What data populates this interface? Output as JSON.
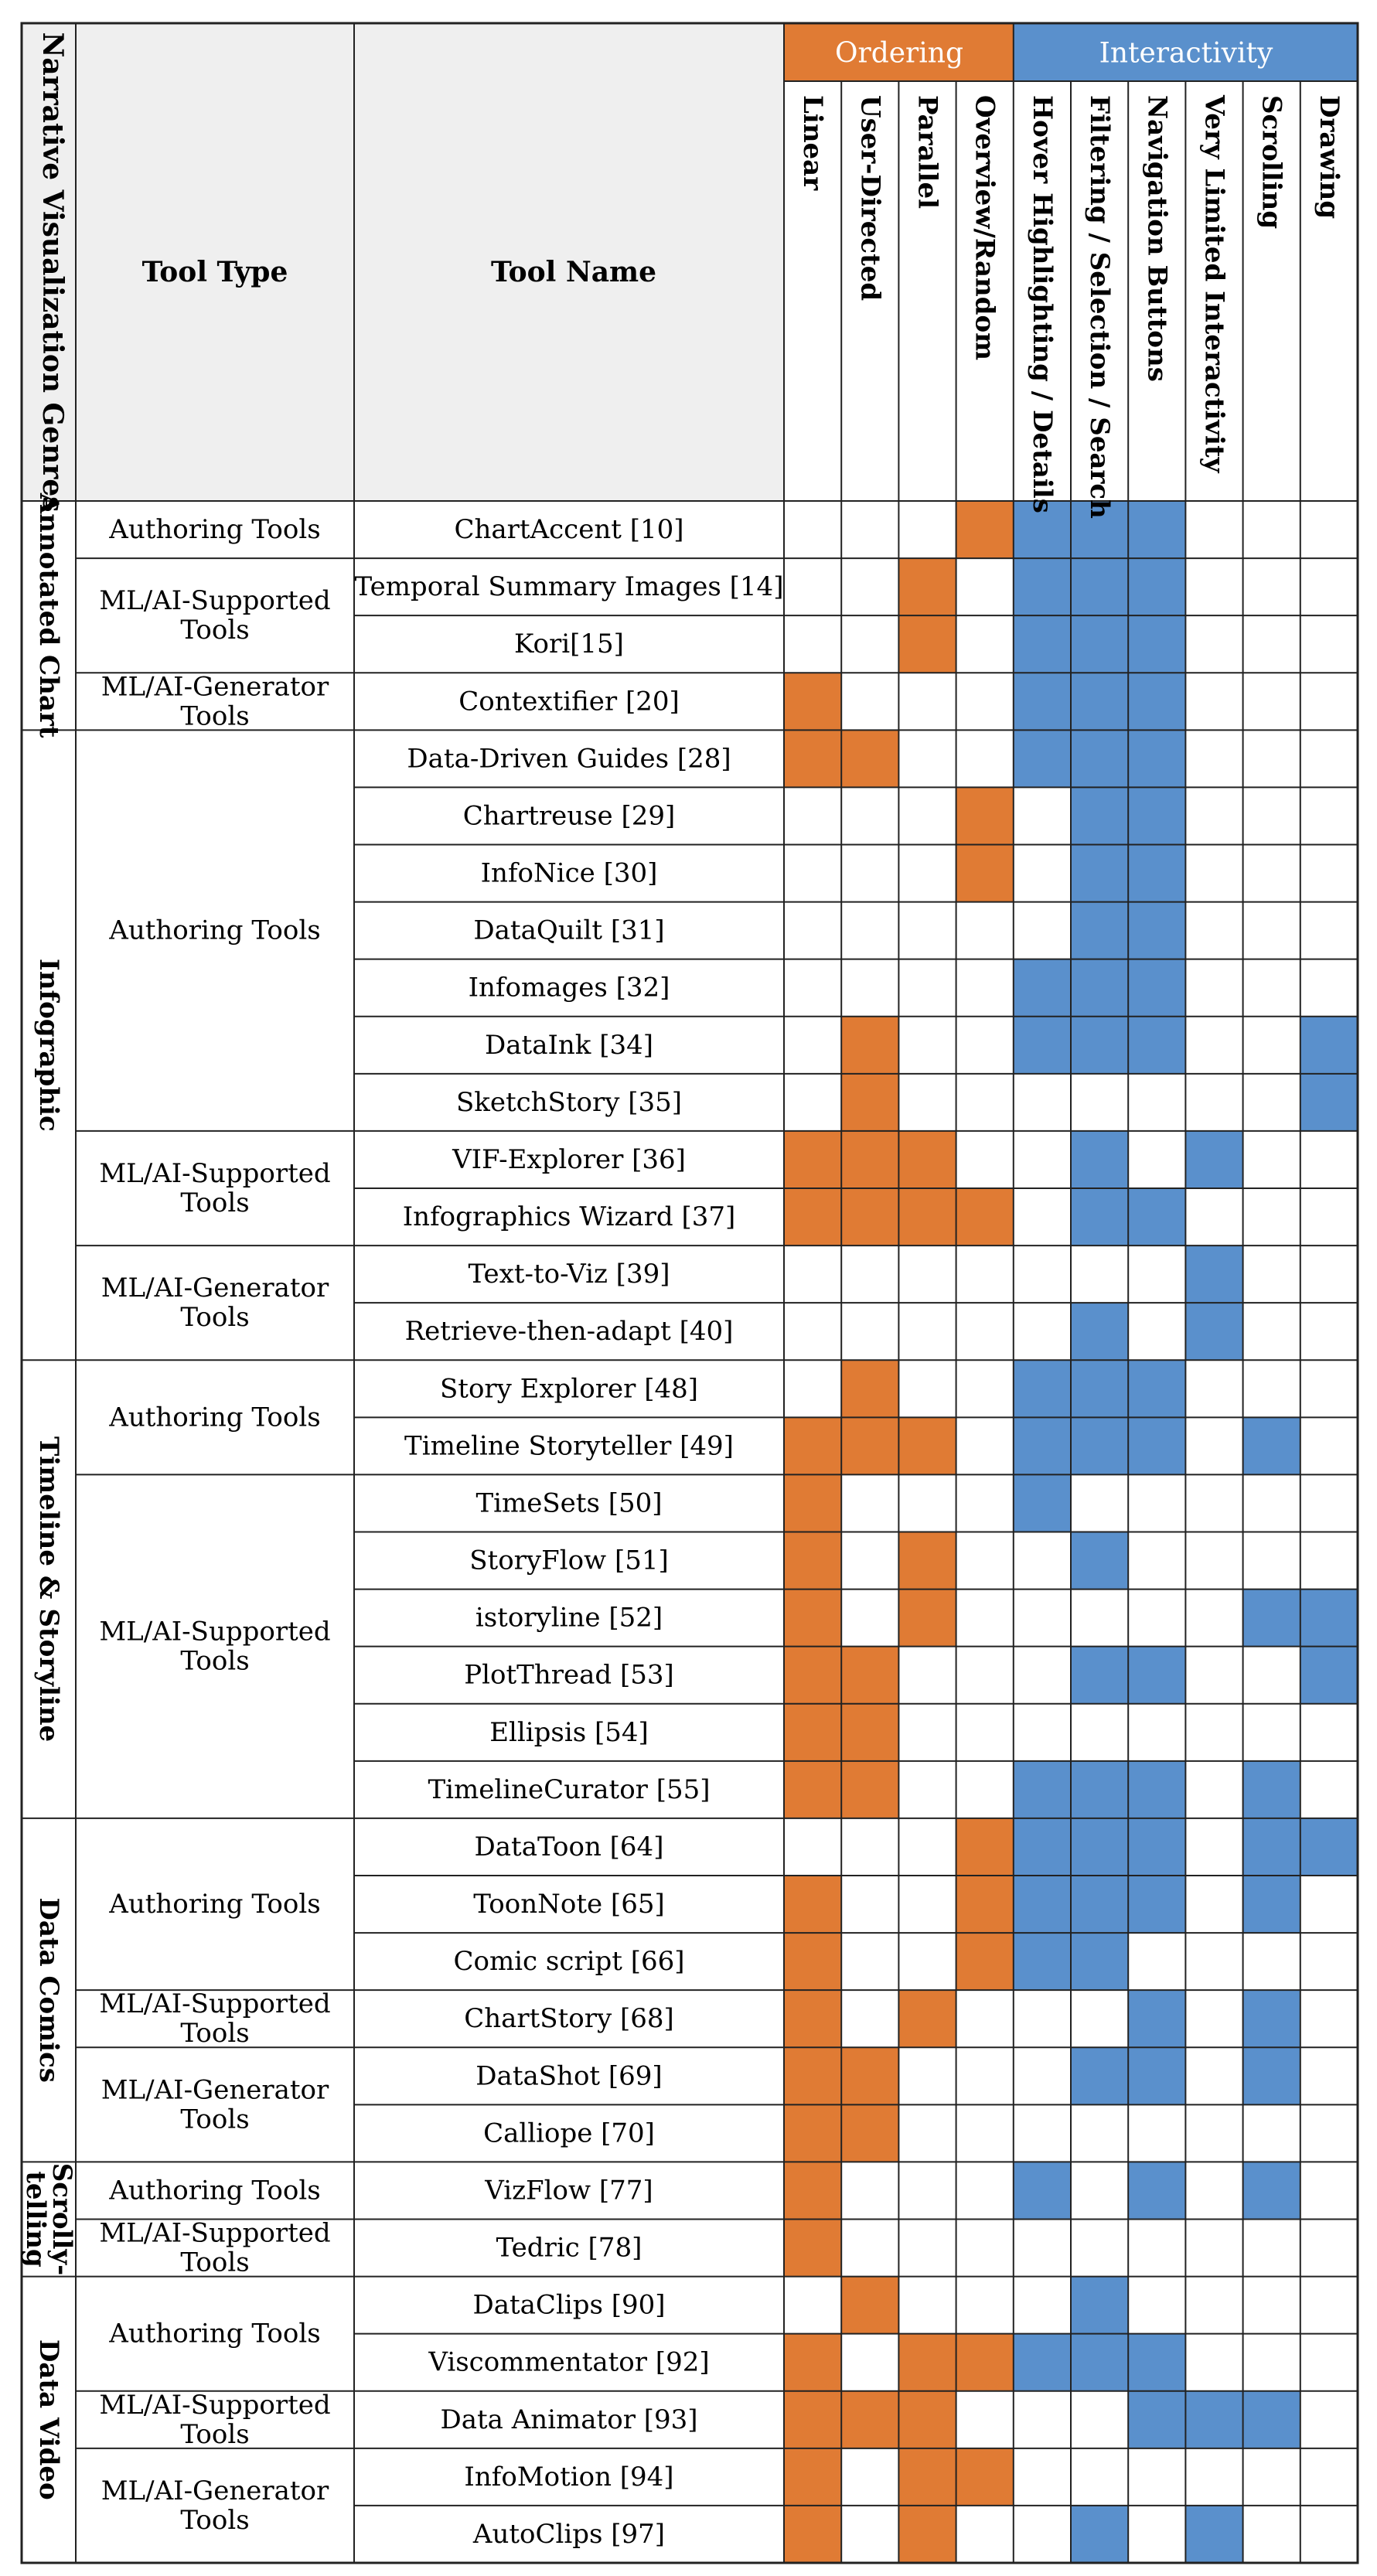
{
  "headers": {
    "genre": "Narrative Visualization Genres",
    "tool_type": "Tool Type",
    "tool_name": "Tool Name",
    "ordering": "Ordering",
    "interactivity": "Interactivity",
    "columns": [
      "Linear",
      "User-Directed",
      "Parallel",
      "Overview/Random",
      "Hover Highlighting / Details",
      "Filtering / Selection / Search",
      "Navigation Buttons",
      "Very Limited Interactivity",
      "Scrolling",
      "Drawing"
    ]
  },
  "colors": {
    "ordering": "#E07B34",
    "interactivity": "#5A90CC",
    "header_bg": "#EFEFEF",
    "grid": "#222222"
  },
  "genres": [
    {
      "label": [
        "Annotated Chart"
      ],
      "start": 0,
      "span": 4
    },
    {
      "label": [
        "Infographic"
      ],
      "start": 4,
      "span": 11
    },
    {
      "label": [
        "Timeline & Storyline"
      ],
      "start": 15,
      "span": 8
    },
    {
      "label": [
        "Data Comics"
      ],
      "start": 23,
      "span": 6
    },
    {
      "label": [
        "Scrolly-",
        "telling"
      ],
      "start": 29,
      "span": 2
    },
    {
      "label": [
        "Data Video"
      ],
      "start": 31,
      "span": 5
    }
  ],
  "tool_types": [
    {
      "label": [
        "Authoring Tools"
      ],
      "start": 0,
      "span": 1
    },
    {
      "label": [
        "ML/AI-Supported",
        "Tools"
      ],
      "start": 1,
      "span": 2
    },
    {
      "label": [
        "ML/AI-Generator",
        "Tools"
      ],
      "start": 3,
      "span": 1
    },
    {
      "label": [
        "Authoring Tools"
      ],
      "start": 4,
      "span": 7
    },
    {
      "label": [
        "ML/AI-Supported",
        "Tools"
      ],
      "start": 11,
      "span": 2
    },
    {
      "label": [
        "ML/AI-Generator",
        "Tools"
      ],
      "start": 13,
      "span": 2
    },
    {
      "label": [
        "Authoring Tools"
      ],
      "start": 15,
      "span": 2
    },
    {
      "label": [
        "ML/AI-Supported",
        "Tools"
      ],
      "start": 17,
      "span": 6
    },
    {
      "label": [
        "Authoring Tools"
      ],
      "start": 23,
      "span": 3
    },
    {
      "label": [
        "ML/AI-Supported",
        "Tools"
      ],
      "start": 26,
      "span": 1
    },
    {
      "label": [
        "ML/AI-Generator",
        "Tools"
      ],
      "start": 27,
      "span": 2
    },
    {
      "label": [
        "Authoring Tools"
      ],
      "start": 29,
      "span": 1
    },
    {
      "label": [
        "ML/AI-Supported",
        "Tools"
      ],
      "start": 30,
      "span": 1
    },
    {
      "label": [
        "Authoring Tools"
      ],
      "start": 31,
      "span": 2
    },
    {
      "label": [
        "ML/AI-Supported",
        "Tools"
      ],
      "start": 33,
      "span": 1
    },
    {
      "label": [
        "ML/AI-Generator",
        "Tools"
      ],
      "start": 34,
      "span": 2
    }
  ],
  "rows": [
    {
      "name": "ChartAccent [10]",
      "cells": [
        0,
        0,
        0,
        1,
        1,
        1,
        1,
        0,
        0,
        0
      ]
    },
    {
      "name": "Temporal Summary Images [14]",
      "cells": [
        0,
        0,
        1,
        0,
        1,
        1,
        1,
        0,
        0,
        0
      ]
    },
    {
      "name": "Kori[15]",
      "cells": [
        0,
        0,
        1,
        0,
        1,
        1,
        1,
        0,
        0,
        0
      ]
    },
    {
      "name": "Contextifier [20]",
      "cells": [
        1,
        0,
        0,
        0,
        1,
        1,
        1,
        0,
        0,
        0
      ]
    },
    {
      "name": "Data-Driven Guides [28]",
      "cells": [
        1,
        1,
        0,
        0,
        1,
        1,
        1,
        0,
        0,
        0
      ]
    },
    {
      "name": "Chartreuse [29]",
      "cells": [
        0,
        0,
        0,
        1,
        0,
        1,
        1,
        0,
        0,
        0
      ]
    },
    {
      "name": "InfoNice [30]",
      "cells": [
        0,
        0,
        0,
        1,
        0,
        1,
        1,
        0,
        0,
        0
      ]
    },
    {
      "name": "DataQuilt [31]",
      "cells": [
        0,
        0,
        0,
        0,
        0,
        1,
        1,
        0,
        0,
        0
      ]
    },
    {
      "name": "Infomages [32]",
      "cells": [
        0,
        0,
        0,
        0,
        1,
        1,
        1,
        0,
        0,
        0
      ]
    },
    {
      "name": "DataInk [34]",
      "cells": [
        0,
        1,
        0,
        0,
        1,
        1,
        1,
        0,
        0,
        1
      ]
    },
    {
      "name": "SketchStory [35]",
      "cells": [
        0,
        1,
        0,
        0,
        0,
        0,
        0,
        0,
        0,
        1
      ]
    },
    {
      "name": "VIF-Explorer [36]",
      "cells": [
        1,
        1,
        1,
        0,
        0,
        1,
        0,
        1,
        0,
        0
      ]
    },
    {
      "name": "Infographics Wizard [37]",
      "cells": [
        1,
        1,
        1,
        1,
        0,
        1,
        1,
        0,
        0,
        0
      ]
    },
    {
      "name": "Text-to-Viz [39]",
      "cells": [
        0,
        0,
        0,
        0,
        0,
        0,
        0,
        1,
        0,
        0
      ]
    },
    {
      "name": "Retrieve-then-adapt [40]",
      "cells": [
        0,
        0,
        0,
        0,
        0,
        1,
        0,
        1,
        0,
        0
      ]
    },
    {
      "name": "Story Explorer [48]",
      "cells": [
        0,
        1,
        0,
        0,
        1,
        1,
        1,
        0,
        0,
        0
      ]
    },
    {
      "name": "Timeline Storyteller [49]",
      "cells": [
        1,
        1,
        1,
        0,
        1,
        1,
        1,
        0,
        1,
        0
      ]
    },
    {
      "name": "TimeSets [50]",
      "cells": [
        1,
        0,
        0,
        0,
        1,
        0,
        0,
        0,
        0,
        0
      ]
    },
    {
      "name": "StoryFlow [51]",
      "cells": [
        1,
        0,
        1,
        0,
        0,
        1,
        0,
        0,
        0,
        0
      ]
    },
    {
      "name": "istoryline [52]",
      "cells": [
        1,
        0,
        1,
        0,
        0,
        0,
        0,
        0,
        1,
        1
      ]
    },
    {
      "name": "PlotThread [53]",
      "cells": [
        1,
        1,
        0,
        0,
        0,
        1,
        1,
        0,
        0,
        1
      ]
    },
    {
      "name": "Ellipsis [54]",
      "cells": [
        1,
        1,
        0,
        0,
        0,
        0,
        0,
        0,
        0,
        0
      ]
    },
    {
      "name": "TimelineCurator [55]",
      "cells": [
        1,
        1,
        0,
        0,
        1,
        1,
        1,
        0,
        1,
        0
      ]
    },
    {
      "name": "DataToon [64]",
      "cells": [
        0,
        0,
        0,
        1,
        1,
        1,
        1,
        0,
        1,
        1
      ]
    },
    {
      "name": "ToonNote [65]",
      "cells": [
        1,
        0,
        0,
        1,
        1,
        1,
        1,
        0,
        1,
        0
      ]
    },
    {
      "name": "Comic script [66]",
      "cells": [
        1,
        0,
        0,
        1,
        1,
        1,
        0,
        0,
        0,
        0
      ]
    },
    {
      "name": "ChartStory [68]",
      "cells": [
        1,
        0,
        1,
        0,
        0,
        0,
        1,
        0,
        1,
        0
      ]
    },
    {
      "name": "DataShot [69]",
      "cells": [
        1,
        1,
        0,
        0,
        0,
        1,
        1,
        0,
        1,
        0
      ]
    },
    {
      "name": "Calliope [70]",
      "cells": [
        1,
        1,
        0,
        0,
        0,
        0,
        0,
        0,
        0,
        0
      ]
    },
    {
      "name": "VizFlow [77]",
      "cells": [
        1,
        0,
        0,
        0,
        1,
        0,
        1,
        0,
        1,
        0
      ]
    },
    {
      "name": "Tedric [78]",
      "cells": [
        1,
        0,
        0,
        0,
        0,
        0,
        0,
        0,
        0,
        0
      ]
    },
    {
      "name": "DataClips [90]",
      "cells": [
        0,
        1,
        0,
        0,
        0,
        1,
        0,
        0,
        0,
        0
      ]
    },
    {
      "name": "Viscommentator [92]",
      "cells": [
        1,
        0,
        1,
        1,
        1,
        1,
        1,
        0,
        0,
        0
      ]
    },
    {
      "name": "Data Animator [93]",
      "cells": [
        1,
        1,
        1,
        0,
        0,
        0,
        1,
        1,
        1,
        0
      ]
    },
    {
      "name": "InfoMotion [94]",
      "cells": [
        1,
        0,
        1,
        1,
        0,
        0,
        0,
        0,
        0,
        0
      ]
    },
    {
      "name": "AutoClips [97]",
      "cells": [
        1,
        0,
        1,
        0,
        0,
        1,
        0,
        1,
        0,
        0
      ]
    }
  ]
}
